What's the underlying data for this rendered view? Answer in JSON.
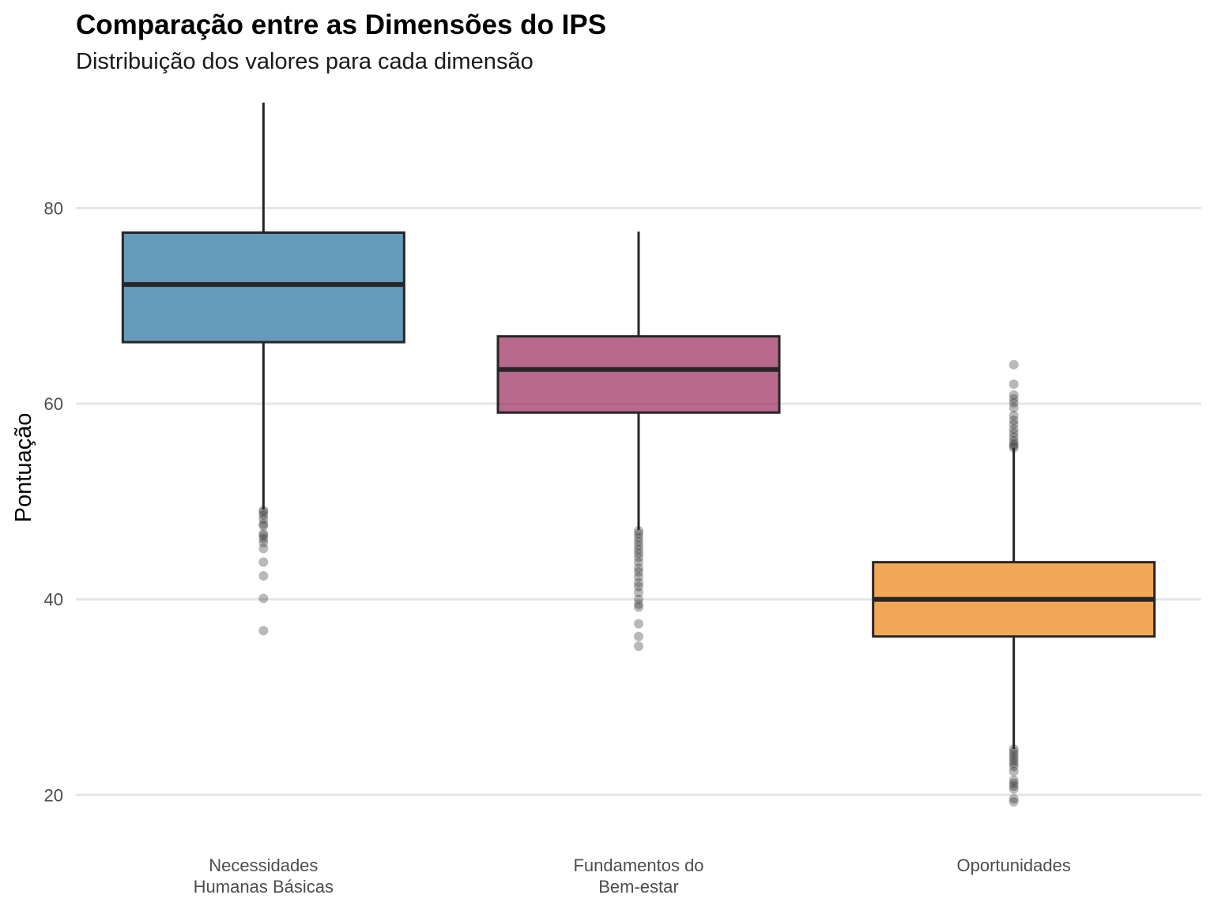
{
  "chart_data": {
    "type": "boxplot",
    "title": "Comparação entre as Dimensões do IPS",
    "subtitle": "Distribuição dos valores para cada dimensão",
    "xlabel": "",
    "ylabel": "Pontuação",
    "ylim": [
      15.5,
      92
    ],
    "yticks": [
      20,
      40,
      60,
      80
    ],
    "grid": "horizontal",
    "legend": "none",
    "categories": [
      [
        "Necessidades",
        "Humanas Básicas"
      ],
      [
        "Fundamentos do",
        "Bem-estar"
      ],
      [
        "Oportunidades"
      ]
    ],
    "boxes": [
      {
        "color": "#2b73a0",
        "whisker_low": 49.2,
        "q1": 66.3,
        "median": 72.2,
        "q3": 77.5,
        "whisker_high": 90.8,
        "outliers": [
          49.1,
          48.9,
          48.6,
          48.2,
          47.7,
          47.5,
          46.7,
          46.5,
          46.2,
          45.8,
          45.2,
          43.8,
          42.4,
          40.1,
          36.8
        ]
      },
      {
        "color": "#9c2f60",
        "whisker_low": 47.1,
        "q1": 59.1,
        "median": 63.5,
        "q3": 66.9,
        "whisker_high": 77.6,
        "outliers": [
          47.0,
          46.7,
          46.3,
          45.9,
          45.5,
          45.1,
          44.7,
          44.3,
          43.8,
          43.2,
          42.8,
          42.3,
          41.7,
          41.3,
          40.7,
          40.0,
          39.5,
          39.2,
          37.5,
          36.2,
          35.2
        ]
      },
      {
        "color": "#ec8514",
        "whisker_low": 24.7,
        "q1": 36.2,
        "median": 40.0,
        "q3": 43.8,
        "whisker_high": 55.5,
        "outliers": [
          64.0,
          62.0,
          60.9,
          60.5,
          60.1,
          59.6,
          58.8,
          58.3,
          57.9,
          57.4,
          57.0,
          56.6,
          56.2,
          55.9,
          55.7,
          55.5,
          24.7,
          24.4,
          24.1,
          23.8,
          23.5,
          23.2,
          22.9,
          22.4,
          21.5,
          21.2,
          20.9,
          20.6,
          19.6,
          19.3
        ]
      }
    ]
  }
}
